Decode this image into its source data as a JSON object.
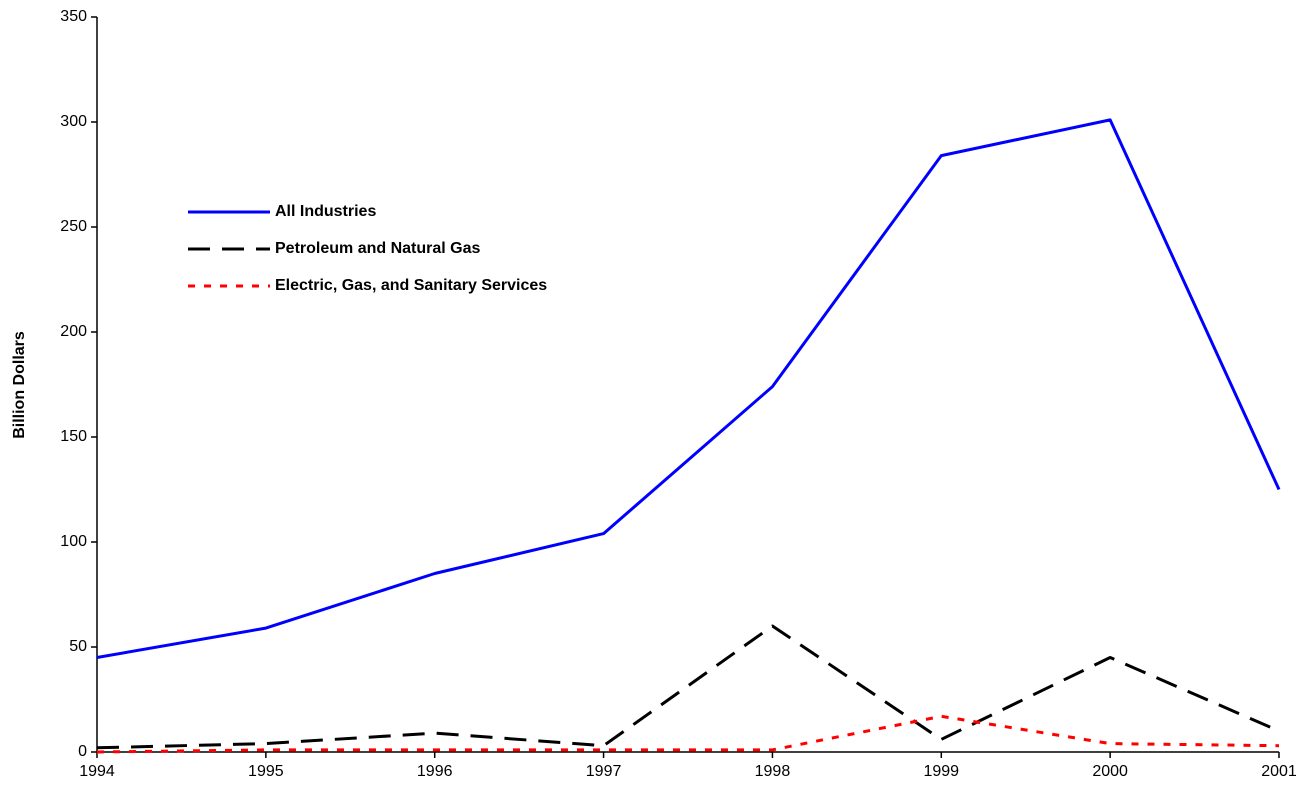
{
  "chart_data": {
    "type": "line",
    "y_label": "Billion Dollars",
    "x": [
      1994,
      1995,
      1996,
      1997,
      1998,
      1999,
      2000,
      2001
    ],
    "xlim": [
      1994,
      2001
    ],
    "xticks": [
      1994,
      1995,
      1996,
      1997,
      1998,
      1999,
      2000,
      2001
    ],
    "ylim": [
      0,
      350
    ],
    "yticks": [
      0,
      50,
      100,
      150,
      200,
      250,
      300,
      350
    ],
    "legend": "upper left",
    "series": [
      {
        "name": "All Industries",
        "color": "#0000ff",
        "dash": "solid",
        "values": [
          45,
          59,
          85,
          104,
          174,
          284,
          301,
          125
        ]
      },
      {
        "name": "Petroleum and Natural Gas",
        "color": "#000000",
        "dash": "dashed",
        "values": [
          2,
          4,
          9,
          3,
          60,
          6,
          45,
          10
        ]
      },
      {
        "name": "Electric, Gas, and Sanitary Services",
        "color": "#ff0000",
        "dash": "dotted",
        "values": [
          0,
          1,
          1,
          1,
          1,
          17,
          4,
          3
        ]
      }
    ]
  }
}
